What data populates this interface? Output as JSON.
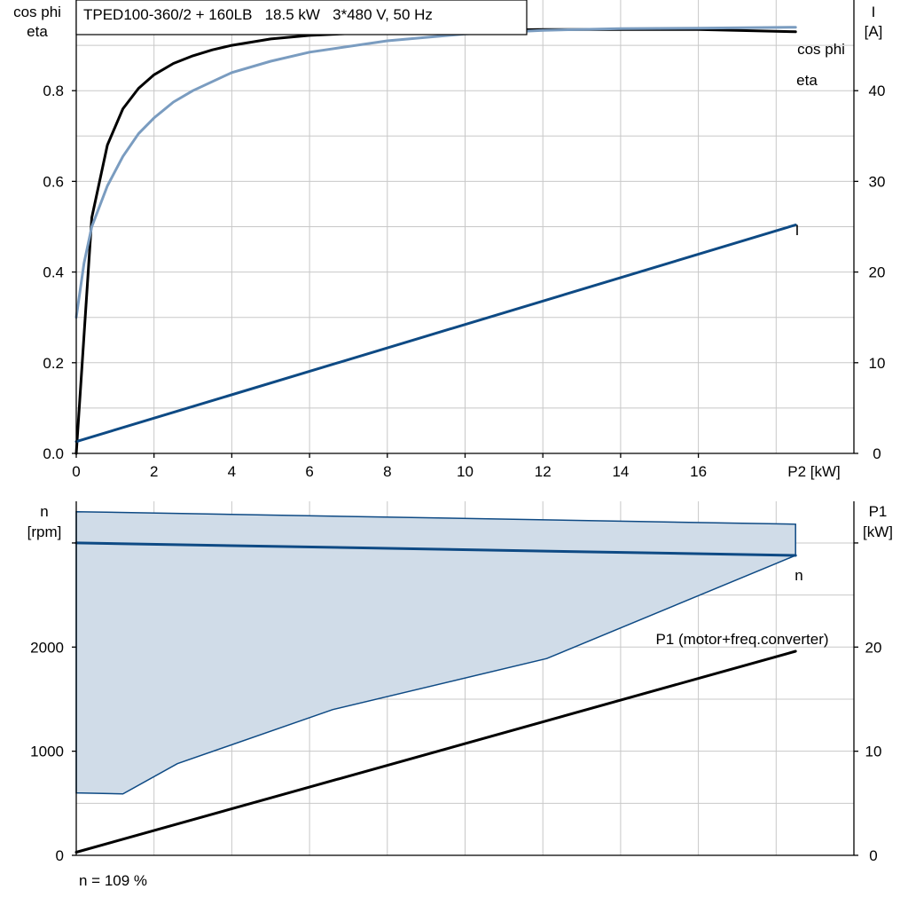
{
  "chart_data": [
    {
      "type": "line",
      "title": "TPED100-360/2 + 160LB   18.5 kW   3*480 V, 50 Hz",
      "xlabel": "P2 [kW]",
      "ylabel_left": [
        "cos phi",
        "eta"
      ],
      "ylabel_right": [
        "I",
        "[A]"
      ],
      "xlim": [
        0,
        20
      ],
      "ylim_left": [
        0,
        1.0
      ],
      "ylim_right": [
        0,
        50
      ],
      "x_ticks": [
        "0",
        "2",
        "4",
        "6",
        "8",
        "10",
        "12",
        "14",
        "16"
      ],
      "y_ticks_left": [
        "0.0",
        "0.2",
        "0.4",
        "0.6",
        "0.8"
      ],
      "y_ticks_right": [
        "0",
        "10",
        "20",
        "30",
        "40"
      ],
      "grid": true,
      "series": [
        {
          "name": "eta",
          "axis": "left",
          "color": "#000000",
          "x": [
            0,
            0.4,
            0.8,
            1.2,
            1.6,
            2.0,
            2.5,
            3,
            3.5,
            4,
            5,
            6,
            8,
            10,
            12,
            14,
            16,
            18.5
          ],
          "y": [
            0.0,
            0.52,
            0.68,
            0.76,
            0.805,
            0.835,
            0.86,
            0.877,
            0.89,
            0.9,
            0.914,
            0.922,
            0.93,
            0.933,
            0.935,
            0.935,
            0.935,
            0.93
          ]
        },
        {
          "name": "cos phi",
          "axis": "left",
          "color": "#7a9cc0",
          "x": [
            0,
            0.2,
            0.4,
            0.8,
            1.2,
            1.6,
            2.0,
            2.5,
            3,
            4,
            5,
            6,
            8,
            10,
            12,
            14,
            16,
            18.5
          ],
          "y": [
            0.3,
            0.42,
            0.5,
            0.59,
            0.655,
            0.705,
            0.74,
            0.775,
            0.8,
            0.84,
            0.865,
            0.885,
            0.91,
            0.925,
            0.933,
            0.937,
            0.938,
            0.94
          ]
        },
        {
          "name": "I",
          "axis": "right",
          "color": "#0e4a84",
          "x": [
            0,
            18.5
          ],
          "y": [
            1.3,
            25.2
          ]
        }
      ]
    },
    {
      "type": "area",
      "xlim": [
        0,
        20
      ],
      "ylabel_left": [
        "n",
        "[rpm]"
      ],
      "ylabel_right": [
        "P1",
        "[kW]"
      ],
      "ylim_left": [
        0,
        3400
      ],
      "ylim_right": [
        0,
        34
      ],
      "y_ticks_left": [
        "0",
        "1000",
        "2000"
      ],
      "y_ticks_right": [
        "0",
        "10",
        "20"
      ],
      "grid": true,
      "annotation": "n = 109 %",
      "series": [
        {
          "name": "n",
          "axis": "left",
          "color": "#0e4a84",
          "x": [
            0,
            18.5
          ],
          "y": [
            3000,
            2880
          ]
        },
        {
          "name": "P1 (motor+freq.converter)",
          "axis": "right",
          "color": "#000000",
          "x": [
            0,
            18.5
          ],
          "y": [
            0.3,
            19.6
          ]
        }
      ],
      "range_area": {
        "color": "#d0dce8",
        "edge_color": "#0e4a84",
        "upper": {
          "x": [
            0,
            18.5
          ],
          "y": [
            3300,
            3180
          ]
        },
        "lower": {
          "x": [
            0,
            1.2,
            2.6,
            6.6,
            12.1,
            18.5
          ],
          "y": [
            600,
            590,
            880,
            1400,
            1890,
            2880
          ]
        }
      }
    }
  ]
}
